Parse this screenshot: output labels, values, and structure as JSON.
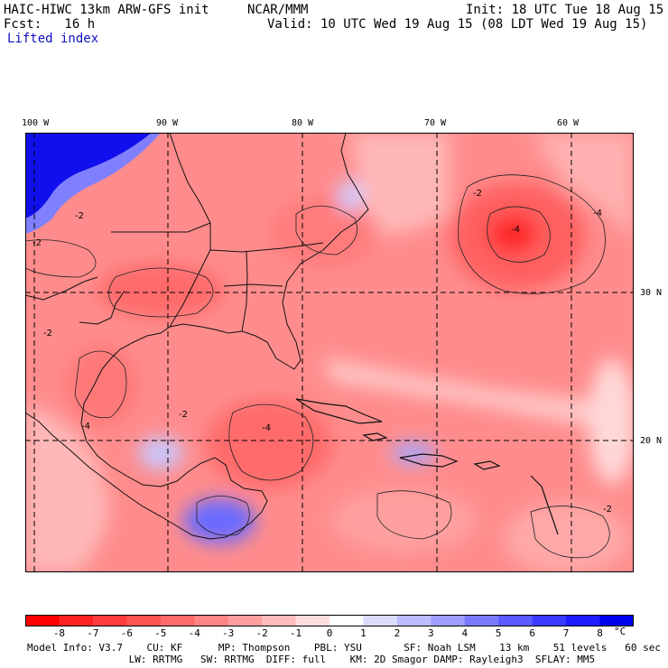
{
  "header": {
    "model_title": "HAIC-HIWC 13km ARW-GFS init",
    "org": "NCAR/MMM",
    "init": "Init: 18 UTC Tue 18 Aug 15",
    "fcst": "Fcst:   16 h",
    "valid": "Valid: 10 UTC Wed 19 Aug 15 (08 LDT Wed 19 Aug 15)",
    "field": "Lifted index"
  },
  "map": {
    "lon_labels": [
      "100 W",
      "90 W",
      "80 W",
      "70 W",
      "60 W"
    ],
    "lat_labels": [
      "30 N",
      "20 N"
    ],
    "contour_labels": [
      "-2",
      "-4",
      "-2",
      "-4",
      "-2",
      "-4",
      "-2",
      "-4",
      "-2",
      "-2"
    ]
  },
  "colorbar": {
    "labels": [
      "-8",
      "-7",
      "-6",
      "-5",
      "-4",
      "-3",
      "-2",
      "-1",
      "0",
      "1",
      "2",
      "3",
      "4",
      "5",
      "6",
      "7",
      "8"
    ],
    "unit": "°C",
    "colors": [
      "#ff0000",
      "#ff2222",
      "#ff3c3c",
      "#ff5252",
      "#ff6a6a",
      "#ff8484",
      "#ff9e9e",
      "#ffbcbc",
      "#ffdcdc",
      "#ffffff",
      "#dcdcff",
      "#bcbcff",
      "#9e9eff",
      "#7a7aff",
      "#5a5aff",
      "#3a3aff",
      "#1c1cff",
      "#0000ee"
    ]
  },
  "footer": {
    "line1": "Model Info: V3.7    CU: KF      MP: Thompson    PBL: YSU       SF: Noah LSM    13 km    51 levels   60 sec",
    "line2": "                 LW: RRTMG   SW: RRTMG  DIFF: full    KM: 2D Smagor DAMP: Rayleigh3  SFLAY: MM5"
  }
}
